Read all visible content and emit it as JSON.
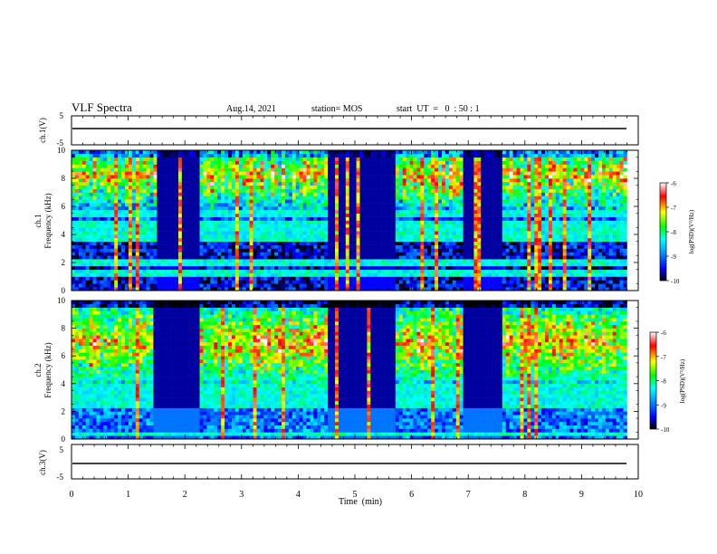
{
  "header": {
    "title": "VLF Spectra",
    "date": "Aug.14, 2021",
    "station": "station= MOS",
    "start_ut": "start  UT  =   0  : 50 : 1"
  },
  "colors": {
    "colormap": [
      "#000000",
      "#0000ff",
      "#00a0ff",
      "#00ffff",
      "#00ff00",
      "#ffff00",
      "#ff0000",
      "#ffffff"
    ]
  },
  "chart_data": [
    {
      "type": "line",
      "panel": "ch1-waveform",
      "ylabel": "ch.1(V)",
      "ylim": [
        -5,
        5
      ],
      "yticks": [
        "5",
        "-5"
      ],
      "x": [
        0,
        10
      ],
      "series": [
        {
          "values": [
            0,
            0
          ]
        }
      ]
    },
    {
      "type": "heatmap",
      "panel": "ch1-spectrogram",
      "ylabel": "ch.1\nFrequency (kHz)",
      "ylim": [
        0,
        10
      ],
      "yticks": [
        "0",
        "2",
        "4",
        "6",
        "8",
        "10"
      ],
      "xlim": [
        0,
        9.8
      ],
      "colorbar": {
        "label": "log(PSD)(V²/Hz)",
        "range": [
          -10,
          -6
        ],
        "ticks": [
          "-6",
          "-7",
          "-8",
          "-9",
          "-10"
        ]
      },
      "quiet_intervals_min": [
        [
          1.5,
          2.2
        ],
        [
          4.5,
          5.7
        ],
        [
          6.9,
          7.6
        ]
      ],
      "intense_band_khz": [
        7.5,
        9.0
      ],
      "intense_band_level": -6.3,
      "background_level": -9.5
    },
    {
      "type": "heatmap",
      "panel": "ch2-spectrogram",
      "ylabel": "ch.2\nFrequency (kHz)",
      "ylim": [
        0,
        10
      ],
      "yticks": [
        "0",
        "2",
        "4",
        "6",
        "8",
        "10"
      ],
      "xlim": [
        0,
        9.8
      ],
      "colorbar": {
        "label": "log(PSD)(V²/Hz)",
        "range": [
          -10,
          -6
        ],
        "ticks": [
          "-6",
          "-7",
          "-8",
          "-9",
          "-10"
        ]
      },
      "quiet_intervals_min": [
        [
          1.4,
          2.2
        ],
        [
          4.5,
          5.7
        ],
        [
          6.9,
          7.6
        ]
      ],
      "intense_band_khz": [
        6.0,
        8.0
      ],
      "intense_band_level": -6.3,
      "background_level": -9.0
    },
    {
      "type": "line",
      "panel": "ch3-waveform",
      "ylabel": "ch.3(V)",
      "ylim": [
        -5,
        5
      ],
      "yticks": [
        "5",
        "-5"
      ],
      "x": [
        0,
        10
      ],
      "series": [
        {
          "values": [
            0,
            0
          ]
        }
      ]
    }
  ],
  "xaxis": {
    "label": "Time  (min)",
    "range": [
      0,
      10
    ],
    "ticks": [
      "0",
      "1",
      "2",
      "3",
      "4",
      "5",
      "6",
      "7",
      "8",
      "9",
      "10"
    ]
  }
}
